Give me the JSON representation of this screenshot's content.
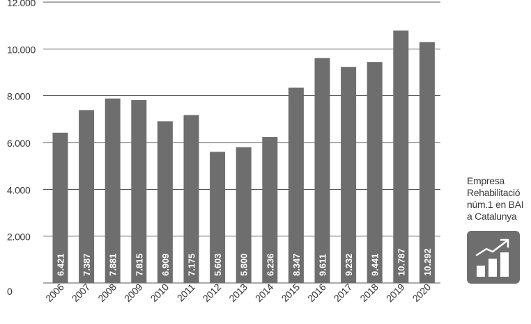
{
  "chart_data": {
    "type": "bar",
    "title": "",
    "xlabel": "",
    "ylabel": "",
    "categories": [
      "2006",
      "2007",
      "2008",
      "2009",
      "2010",
      "2011",
      "2012",
      "2013",
      "2014",
      "2015",
      "2016",
      "2017",
      "2018",
      "2019",
      "2020"
    ],
    "values": [
      6421,
      7387,
      7881,
      7815,
      6909,
      7175,
      5603,
      5800,
      6236,
      8347,
      9611,
      9232,
      9441,
      10787,
      10292
    ],
    "value_labels": [
      "6.421",
      "7.387",
      "7.881",
      "7.815",
      "6.909",
      "7.175",
      "5.603",
      "5.800",
      "6.236",
      "8.347",
      "9.611",
      "9.232",
      "9.441",
      "10.787",
      "10.292"
    ],
    "ylim": [
      0,
      12000
    ],
    "yticks": [
      0,
      2000,
      4000,
      6000,
      8000,
      10000,
      12000
    ],
    "ytick_labels": [
      "0",
      "2.000",
      "4.000",
      "6.000",
      "8.000",
      "10.000",
      "12.000"
    ],
    "grid": true,
    "bar_color": "#6f6e6e",
    "grid_color": "#555555",
    "value_label_color": "#ffffff"
  },
  "legend": {
    "lines": [
      "Empresa",
      "Rehabilitació",
      "núm.1 en BAI",
      "a Catalunya"
    ],
    "icon": "rising-bar-chart-icon",
    "icon_background": "#6f6e6e",
    "icon_foreground": "#ffffff"
  }
}
